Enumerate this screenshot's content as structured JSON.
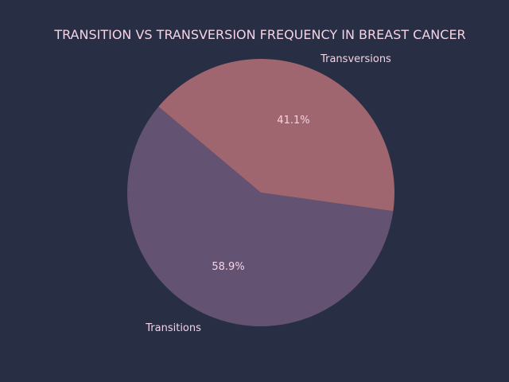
{
  "chart_data": {
    "type": "pie",
    "title": "TRANSITION VS TRANSVERSION FREQUENCY IN BREAST CANCER",
    "categories": [
      "Transitions",
      "Transversions"
    ],
    "values": [
      58.9,
      41.1
    ],
    "percent_labels": [
      "58.9%",
      "41.1%"
    ],
    "colors": [
      "#645272",
      "#a06670"
    ],
    "start_angle_deg": 140,
    "direction": "counterclockwise",
    "legend": "none"
  },
  "colors": {
    "background": "#282e44",
    "text": "#f6d3e4"
  }
}
